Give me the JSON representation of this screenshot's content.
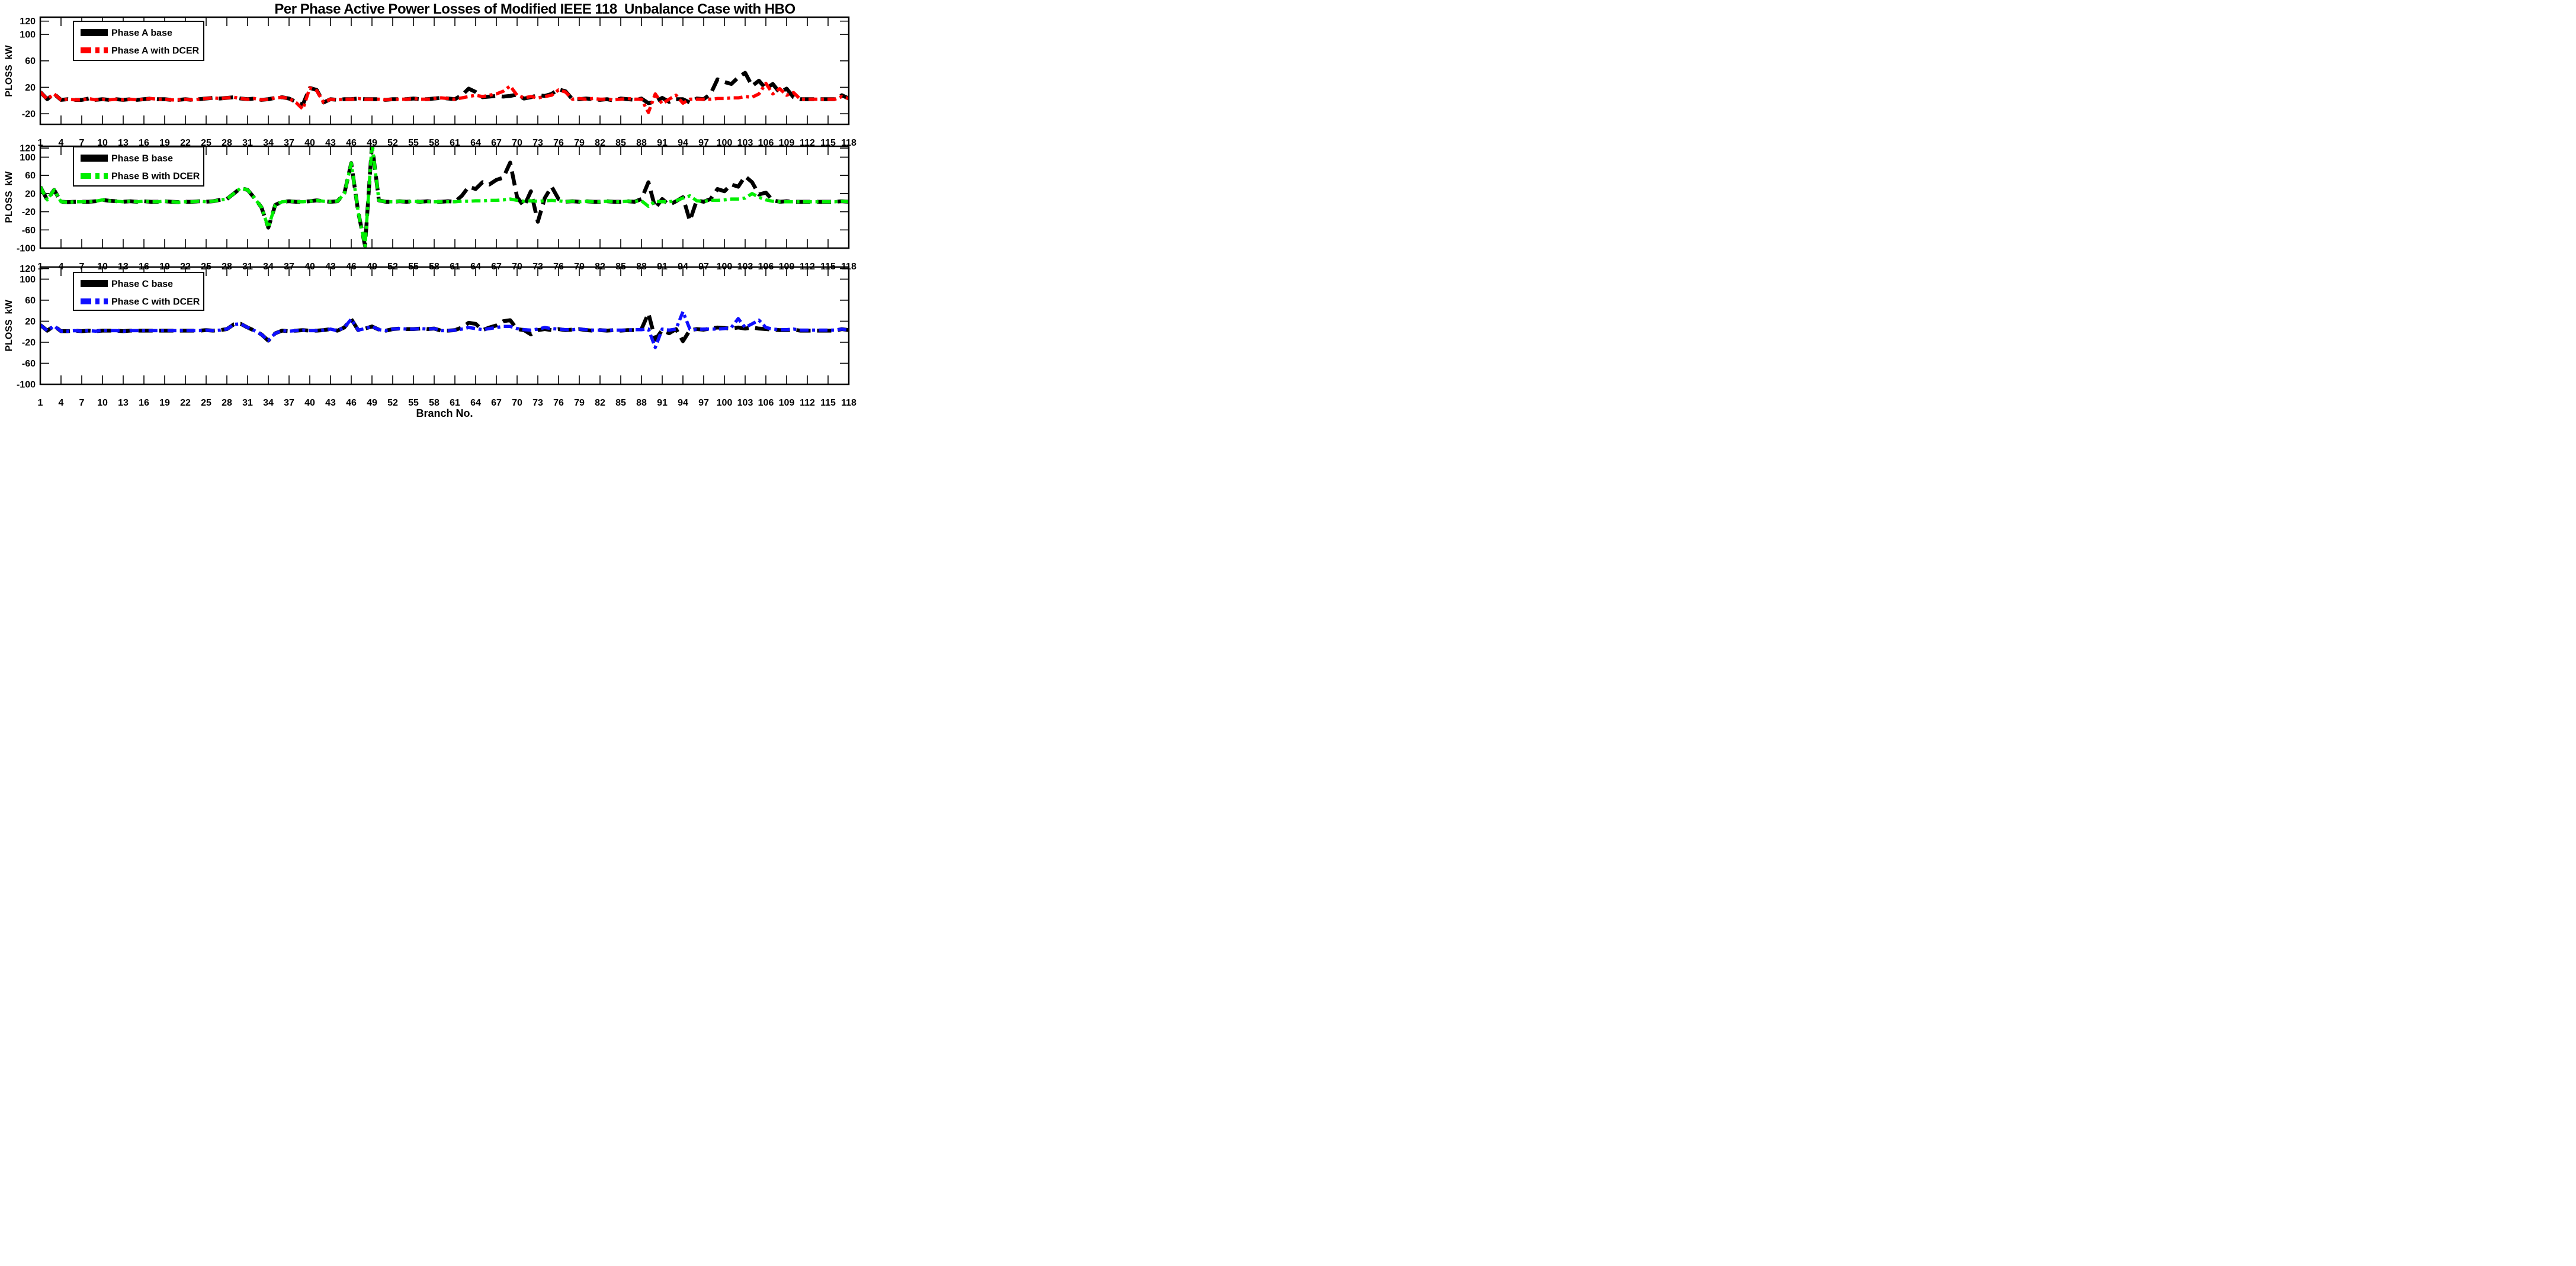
{
  "title": "Per Phase Active Power Losses of Modified IEEE 118  Unbalance Case with HBO",
  "xlabel": "Branch No.",
  "axis_color": "#000000",
  "background_color": "#ffffff",
  "chart_data": {
    "type": "line",
    "x_label": "Branch No.",
    "x_range": [
      1,
      118
    ],
    "x_ticks": [
      1,
      4,
      7,
      10,
      13,
      16,
      19,
      22,
      25,
      28,
      31,
      34,
      37,
      40,
      43,
      46,
      49,
      52,
      55,
      58,
      61,
      64,
      67,
      70,
      73,
      76,
      79,
      82,
      85,
      88,
      91,
      94,
      97,
      100,
      103,
      106,
      109,
      112,
      115,
      118
    ],
    "grid": false,
    "legend_position": "upper-left",
    "subplots": [
      {
        "id": "phase-a",
        "ylabel": "PLOSS  kW",
        "ylim": [
          -36,
          126
        ],
        "yticks": [
          120,
          100,
          60,
          20,
          -20
        ],
        "series": [
          {
            "name": "Phase A base",
            "color": "#000000",
            "style": "dashed",
            "values": [
              13,
              2,
              10,
              1,
              2,
              1,
              1,
              3,
              1,
              2,
              1,
              2,
              1,
              2,
              1,
              2,
              3,
              2,
              2,
              1,
              1,
              2,
              1,
              2,
              3,
              4,
              3,
              4,
              5,
              3,
              2,
              3,
              1,
              2,
              4,
              5,
              3,
              -2,
              -6,
              19,
              16,
              -3,
              2,
              1,
              2,
              2,
              3,
              2,
              2,
              2,
              1,
              2,
              2,
              2,
              3,
              2,
              2,
              3,
              4,
              3,
              2,
              8,
              18,
              13,
              5,
              6,
              7,
              6,
              7,
              9,
              3,
              5,
              8,
              7,
              10,
              17,
              14,
              2,
              2,
              3,
              2,
              1,
              2,
              0,
              3,
              2,
              1,
              3,
              -4,
              -2,
              4,
              -2,
              2,
              2,
              -3,
              3,
              2,
              10,
              32,
              28,
              25,
              35,
              42,
              22,
              30,
              18,
              25,
              12,
              18,
              5,
              2,
              2,
              2,
              2,
              2,
              2,
              8,
              3
            ]
          },
          {
            "name": "Phase A with DCER",
            "color": "#ff0000",
            "style": "dashdot",
            "values": [
              13,
              2,
              10,
              1,
              2,
              1,
              1,
              3,
              1,
              2,
              1,
              2,
              1,
              2,
              1,
              2,
              3,
              2,
              2,
              1,
              1,
              2,
              1,
              2,
              3,
              4,
              3,
              4,
              5,
              3,
              2,
              3,
              1,
              2,
              4,
              5,
              3,
              -3,
              -13,
              19,
              15,
              -3,
              2,
              1,
              2,
              2,
              3,
              2,
              2,
              2,
              1,
              2,
              2,
              2,
              3,
              2,
              2,
              3,
              4,
              3,
              2,
              4,
              6,
              8,
              6,
              8,
              10,
              14,
              22,
              8,
              4,
              6,
              4,
              6,
              8,
              16,
              13,
              2,
              3,
              2,
              3,
              2,
              2,
              1,
              2,
              3,
              2,
              2,
              -18,
              10,
              -5,
              2,
              8,
              -4,
              2,
              2,
              2,
              2,
              3,
              3,
              4,
              4,
              6,
              5,
              10,
              26,
              10,
              18,
              8,
              12,
              2,
              2,
              2,
              2,
              2,
              2,
              6,
              3
            ]
          }
        ]
      },
      {
        "id": "phase-b",
        "ylabel": "PLOSS  kW",
        "ylim": [
          -100,
          124
        ],
        "yticks": [
          120,
          100,
          60,
          20,
          -20,
          -60,
          -100
        ],
        "series": [
          {
            "name": "Phase B base",
            "color": "#000000",
            "style": "dashed",
            "values": [
              35,
              6,
              28,
              2,
              1,
              2,
              2,
              2,
              3,
              6,
              4,
              3,
              2,
              3,
              2,
              3,
              2,
              2,
              3,
              2,
              1,
              2,
              2,
              3,
              2,
              3,
              6,
              8,
              20,
              32,
              28,
              10,
              -10,
              -55,
              -5,
              2,
              3,
              2,
              2,
              3,
              5,
              3,
              2,
              3,
              20,
              87,
              -20,
              -95,
              128,
              5,
              2,
              2,
              3,
              2,
              3,
              2,
              3,
              2,
              2,
              3,
              2,
              15,
              35,
              30,
              45,
              40,
              50,
              55,
              88,
              12,
              -8,
              25,
              -42,
              10,
              35,
              8,
              2,
              3,
              2,
              3,
              2,
              2,
              3,
              2,
              2,
              3,
              2,
              8,
              45,
              -12,
              8,
              -5,
              3,
              12,
              -40,
              5,
              2,
              8,
              30,
              25,
              40,
              35,
              58,
              45,
              18,
              22,
              5,
              2,
              3,
              2,
              2,
              2,
              2,
              2,
              2,
              2,
              3,
              2
            ]
          },
          {
            "name": "Phase B with DCER",
            "color": "#00ee00",
            "style": "dashdot",
            "values": [
              35,
              6,
              28,
              2,
              1,
              2,
              2,
              2,
              3,
              6,
              4,
              3,
              2,
              3,
              2,
              3,
              2,
              2,
              3,
              2,
              1,
              2,
              2,
              3,
              2,
              3,
              6,
              8,
              20,
              32,
              28,
              10,
              -10,
              -55,
              -5,
              2,
              3,
              2,
              2,
              3,
              5,
              3,
              2,
              3,
              20,
              87,
              -20,
              -95,
              128,
              5,
              2,
              2,
              3,
              2,
              3,
              2,
              2,
              2,
              2,
              2,
              2,
              3,
              3,
              4,
              4,
              5,
              5,
              6,
              8,
              5,
              3,
              4,
              3,
              4,
              5,
              4,
              2,
              3,
              2,
              3,
              2,
              2,
              3,
              2,
              2,
              3,
              3,
              4,
              -8,
              3,
              2,
              2,
              4,
              10,
              15,
              4,
              3,
              5,
              5,
              6,
              8,
              8,
              10,
              20,
              12,
              6,
              3,
              2,
              2,
              2,
              2,
              2,
              2,
              2,
              2,
              2,
              3,
              2
            ]
          }
        ]
      },
      {
        "id": "phase-c",
        "ylabel": "PLOSS  kW",
        "ylim": [
          -100,
          123
        ],
        "yticks": [
          120,
          100,
          60,
          20,
          -20,
          -60,
          -100
        ],
        "series": [
          {
            "name": "Phase C base",
            "color": "#000000",
            "style": "dashed",
            "values": [
              13,
              2,
              11,
              1,
              1,
              2,
              1,
              2,
              1,
              2,
              2,
              2,
              1,
              2,
              2,
              2,
              2,
              2,
              2,
              2,
              2,
              2,
              2,
              2,
              3,
              2,
              3,
              5,
              14,
              15,
              8,
              2,
              -5,
              -17,
              -3,
              2,
              1,
              2,
              3,
              2,
              2,
              3,
              5,
              2,
              8,
              24,
              3,
              6,
              10,
              4,
              2,
              5,
              6,
              5,
              5,
              6,
              5,
              6,
              2,
              2,
              3,
              8,
              17,
              15,
              3,
              8,
              12,
              20,
              22,
              5,
              3,
              -5,
              3,
              5,
              3,
              5,
              3,
              4,
              5,
              3,
              2,
              3,
              2,
              3,
              2,
              3,
              3,
              5,
              35,
              -15,
              3,
              -3,
              5,
              -18,
              3,
              5,
              4,
              6,
              8,
              7,
              6,
              8,
              6,
              8,
              6,
              5,
              4,
              3,
              3,
              4,
              2,
              2,
              2,
              2,
              2,
              2,
              5,
              3
            ]
          },
          {
            "name": "Phase C with DCER",
            "color": "#0f0fff",
            "style": "dashdot",
            "values": [
              13,
              2,
              11,
              1,
              1,
              2,
              1,
              2,
              1,
              2,
              2,
              2,
              1,
              2,
              2,
              2,
              2,
              2,
              2,
              2,
              2,
              2,
              2,
              2,
              3,
              2,
              3,
              5,
              14,
              15,
              8,
              2,
              -5,
              -17,
              -3,
              2,
              1,
              2,
              3,
              2,
              2,
              3,
              5,
              2,
              8,
              24,
              3,
              6,
              10,
              4,
              2,
              5,
              6,
              5,
              5,
              6,
              5,
              6,
              2,
              2,
              3,
              5,
              8,
              6,
              4,
              6,
              8,
              10,
              10,
              6,
              4,
              3,
              5,
              8,
              6,
              5,
              4,
              4,
              5,
              4,
              3,
              3,
              3,
              3,
              3,
              3,
              4,
              4,
              5,
              -30,
              5,
              3,
              5,
              38,
              5,
              4,
              5,
              5,
              5,
              6,
              8,
              25,
              8,
              15,
              22,
              8,
              5,
              4,
              4,
              5,
              3,
              3,
              3,
              3,
              3,
              3,
              5,
              3
            ]
          }
        ]
      }
    ]
  }
}
